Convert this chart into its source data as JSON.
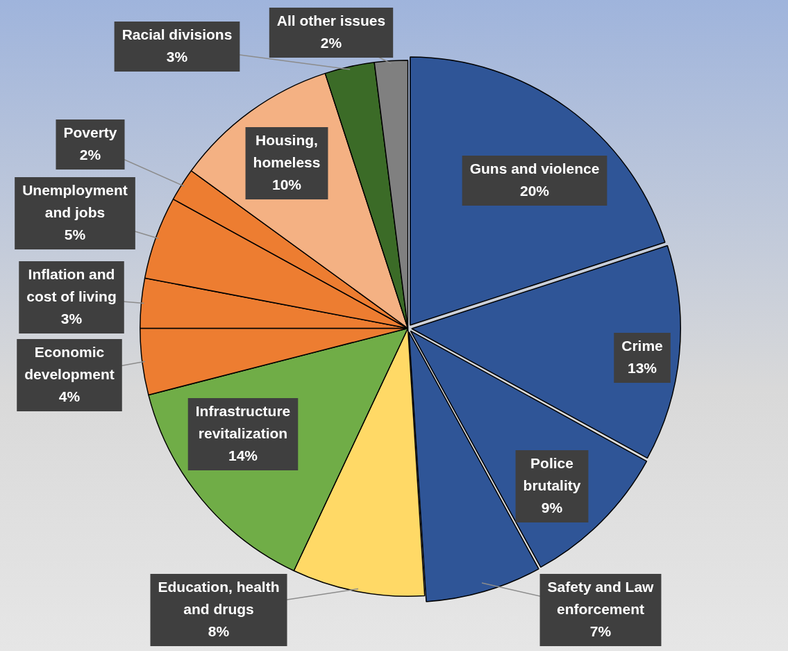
{
  "chart_data": {
    "type": "pie",
    "categories": [
      "Guns and violence",
      "Crime",
      "Police brutality",
      "Safety and Law enforcement",
      "Education, health and drugs",
      "Infrastructure revitalization",
      "Economic development",
      "Inflation and cost of living",
      "Unemployment and jobs",
      "Poverty",
      "Housing, homeless",
      "Racial divisions",
      "All other issues"
    ],
    "values": [
      20,
      13,
      9,
      7,
      8,
      14,
      4,
      3,
      5,
      2,
      10,
      3,
      2
    ],
    "colors": [
      "#2f5597",
      "#2f5597",
      "#2f5597",
      "#2f5597",
      "#ffd966",
      "#70ad47",
      "#ed7d31",
      "#ed7d31",
      "#ed7d31",
      "#ed7d31",
      "#f4b183",
      "#3b6b27",
      "#808080"
    ],
    "value_labels": [
      "20%",
      "13%",
      "9%",
      "7%",
      "8%",
      "14%",
      "4%",
      "3%",
      "5%",
      "2%",
      "10%",
      "3%",
      "2%"
    ]
  }
}
